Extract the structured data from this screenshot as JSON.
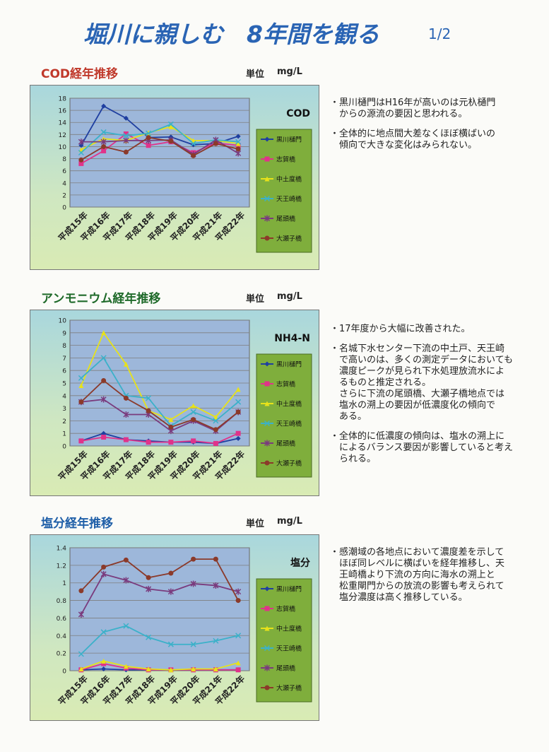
{
  "page": {
    "title": "堀川に親しむ　8年間を観る",
    "page_number": "1/2"
  },
  "sections": [
    {
      "title": "COD経年推移",
      "title_color": "#c0392b",
      "unit_label": "単位",
      "unit_value": "mg/L",
      "notes": [
        "・黒川樋門はH16年が高いのは元杁樋門\n　からの源流の要因と思われる。",
        "・全体的に地点間大差なくほぼ横ばいの\n　傾向で大きな変化はみられない。"
      ]
    },
    {
      "title": "アンモニウム経年推移",
      "title_color": "#1f6a2a",
      "unit_label": "単位",
      "unit_value": "mg/L",
      "notes": [
        "・17年度から大幅に改善された。",
        "・名城下水センター下流の中土戸、天王崎\n　で高いのは、多くの測定データにおいても\n　濃度ピークが見られ下水処理放流水によ\n　るものと推定される。\n　さらに下流の尾頭橋、大瀬子橋地点では\n　塩水の溯上の要因が低濃度化の傾向で\n　ある。",
        "・全体的に低濃度の傾向は、塩水の溯上に\n　によるバランス要因が影響していると考え\n　られる。"
      ]
    },
    {
      "title": "塩分経年推移",
      "title_color": "#1f5fa8",
      "unit_label": "単位",
      "unit_value": "mg/L",
      "notes": [
        "・感潮域の各地点において濃度差を示して\n　ほぼ同レベルに横ばいを経年推移し、天\n　王崎橋より下流の方向に海水の溯上と\n　松重閘門からの放流の影響も考えられて\n　塩分濃度は高く推移している。"
      ]
    }
  ],
  "chart_data": [
    {
      "type": "line",
      "title": "COD",
      "categories": [
        "平成15年",
        "平成16年",
        "平成17年",
        "平成18年",
        "平成19年",
        "平成20年",
        "平成21年",
        "平成22年"
      ],
      "ylim": [
        0,
        18
      ],
      "yticks": [
        0,
        2,
        4,
        6,
        8,
        10,
        12,
        14,
        16,
        18
      ],
      "grid": true,
      "legend_position": "right",
      "series": [
        {
          "name": "黒川樋門",
          "color": "#1f3fa0",
          "marker": "diamond",
          "values": [
            10.2,
            16.7,
            14.7,
            11.5,
            11.6,
            10.3,
            10.5,
            11.7
          ]
        },
        {
          "name": "志賀橋",
          "color": "#e0338a",
          "marker": "square",
          "values": [
            7.2,
            9.3,
            12.1,
            10.2,
            10.8,
            9.0,
            10.6,
            10.2
          ]
        },
        {
          "name": "中土度橋",
          "color": "#e7e21a",
          "marker": "triangle",
          "values": [
            9.5,
            11.3,
            11.0,
            12.3,
            13.3,
            11.0,
            11.0,
            10.5
          ]
        },
        {
          "name": "天王崎橋",
          "color": "#3bb1c9",
          "marker": "x",
          "values": [
            9.0,
            12.4,
            11.8,
            12.2,
            13.7,
            10.5,
            11.1,
            10.8
          ]
        },
        {
          "name": "尾頭橋",
          "color": "#7a3b7d",
          "marker": "star",
          "values": [
            10.8,
            10.8,
            11.0,
            11.0,
            11.1,
            8.7,
            11.1,
            8.9
          ]
        },
        {
          "name": "大瀬子橋",
          "color": "#8b3a2a",
          "marker": "circle",
          "values": [
            7.8,
            10.0,
            9.1,
            11.5,
            10.9,
            8.5,
            10.5,
            9.6
          ]
        }
      ]
    },
    {
      "type": "line",
      "title": "NH4-N",
      "categories": [
        "平成15年",
        "平成16年",
        "平成17年",
        "平成18年",
        "平成19年",
        "平成20年",
        "平成21年",
        "平成22年"
      ],
      "ylim": [
        0,
        10
      ],
      "yticks": [
        0,
        1,
        2,
        3,
        4,
        5,
        6,
        7,
        8,
        9,
        10
      ],
      "grid": true,
      "legend_position": "right",
      "series": [
        {
          "name": "黒川樋門",
          "color": "#1f3fa0",
          "marker": "diamond",
          "values": [
            0.4,
            1.0,
            0.5,
            0.4,
            0.3,
            0.3,
            0.2,
            0.6
          ]
        },
        {
          "name": "志賀橋",
          "color": "#e0338a",
          "marker": "square",
          "values": [
            0.4,
            0.7,
            0.5,
            0.3,
            0.3,
            0.4,
            0.2,
            1.0
          ]
        },
        {
          "name": "中土度橋",
          "color": "#e7e21a",
          "marker": "triangle",
          "values": [
            4.8,
            9.0,
            6.5,
            2.8,
            2.1,
            3.2,
            2.3,
            4.5
          ]
        },
        {
          "name": "天王崎橋",
          "color": "#3bb1c9",
          "marker": "x",
          "values": [
            5.4,
            7.0,
            4.0,
            3.8,
            1.6,
            2.7,
            2.0,
            3.5
          ]
        },
        {
          "name": "尾頭橋",
          "color": "#7a3b7d",
          "marker": "star",
          "values": [
            3.5,
            3.7,
            2.5,
            2.5,
            1.2,
            2.0,
            1.2,
            2.7
          ]
        },
        {
          "name": "大瀬子橋",
          "color": "#8b3a2a",
          "marker": "circle",
          "values": [
            3.5,
            5.2,
            3.8,
            2.8,
            1.5,
            2.1,
            1.3,
            2.7
          ]
        }
      ]
    },
    {
      "type": "line",
      "title": "塩分",
      "categories": [
        "平成15年",
        "平成16年",
        "平成17年",
        "平成18年",
        "平成19年",
        "平成20年",
        "平成21年",
        "平成22年"
      ],
      "ylim": [
        0,
        1.4
      ],
      "yticks": [
        0,
        0.2,
        0.4,
        0.6,
        0.8,
        1,
        1.2,
        1.4
      ],
      "grid": true,
      "legend_position": "right",
      "series": [
        {
          "name": "黒川樋門",
          "color": "#1f3fa0",
          "marker": "diamond",
          "values": [
            0.01,
            0.02,
            0.01,
            0.01,
            0.01,
            0.01,
            0.01,
            0.01
          ]
        },
        {
          "name": "志賀橋",
          "color": "#e0338a",
          "marker": "square",
          "values": [
            0.01,
            0.08,
            0.03,
            0.01,
            0.01,
            0.01,
            0.01,
            0.01
          ]
        },
        {
          "name": "中土度橋",
          "color": "#e7e21a",
          "marker": "triangle",
          "values": [
            0.02,
            0.11,
            0.05,
            0.02,
            0.01,
            0.02,
            0.02,
            0.09
          ]
        },
        {
          "name": "天王崎橋",
          "color": "#3bb1c9",
          "marker": "x",
          "values": [
            0.19,
            0.44,
            0.51,
            0.38,
            0.3,
            0.3,
            0.34,
            0.4
          ]
        },
        {
          "name": "尾頭橋",
          "color": "#7a3b7d",
          "marker": "star",
          "values": [
            0.64,
            1.1,
            1.03,
            0.93,
            0.9,
            0.99,
            0.97,
            0.9
          ]
        },
        {
          "name": "大瀬子橋",
          "color": "#8b3a2a",
          "marker": "circle",
          "values": [
            0.91,
            1.18,
            1.26,
            1.06,
            1.11,
            1.27,
            1.27,
            0.8
          ]
        }
      ]
    }
  ]
}
